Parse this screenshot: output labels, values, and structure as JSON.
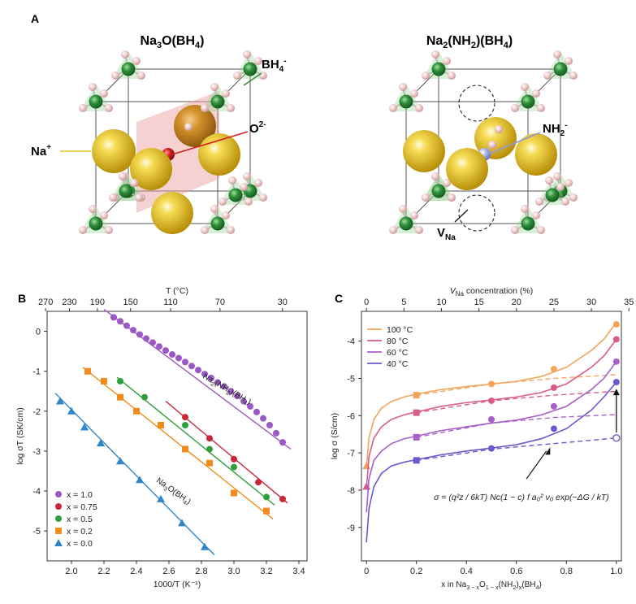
{
  "figure": {
    "panel_a": {
      "label": "A",
      "left_structure": {
        "title_parts": [
          "Na",
          "3",
          "O(BH",
          "4",
          ")"
        ],
        "callout_bh4": [
          "BH",
          "4",
          "-"
        ],
        "callout_na": [
          "Na",
          "+"
        ],
        "callout_o": [
          "O",
          "2-"
        ]
      },
      "right_structure": {
        "title_parts": [
          "Na",
          "2",
          "(NH",
          "2",
          ")(BH",
          "4",
          ")"
        ],
        "callout_nh2": [
          "NH",
          "2",
          "-"
        ],
        "callout_vna": [
          "V",
          "Na"
        ]
      },
      "colors": {
        "na": "#e9c21c",
        "boron": "#2f8f3a",
        "hydrogen": "#f1cccc",
        "oxygen": "#d61f1f",
        "nitrogen": "#9aa4e8",
        "oxide_plane": "#e89a9a"
      }
    },
    "panel_b": {
      "label": "B"
    },
    "panel_c": {
      "label": "C"
    }
  },
  "chart_data": [
    {
      "id": "B",
      "type": "scatter",
      "xlabel": "1000/T (K⁻¹)",
      "ylabel": "log σT (SK/cm)",
      "top_axis_label": "T (°C)",
      "xlim": [
        1.85,
        3.45
      ],
      "ylim": [
        -5.75,
        0.5
      ],
      "x_ticks": [
        2.0,
        2.2,
        2.4,
        2.6,
        2.8,
        3.0,
        3.2,
        3.4
      ],
      "x_tick_labels": [
        "2.0",
        "2.2",
        "2.4",
        "2.6",
        "2.8",
        "3.0",
        "3.2",
        "3.4"
      ],
      "y_ticks": [
        0,
        -1,
        -2,
        -3,
        -4,
        -5
      ],
      "y_tick_labels": [
        "0",
        "-1",
        "-2",
        "-3",
        "-4",
        "-5"
      ],
      "top_ticks_celsius": [
        270,
        230,
        190,
        150,
        110,
        70,
        30
      ],
      "top_tick_labels": [
        "270",
        "230",
        "190",
        "150",
        "110",
        "70",
        "30"
      ],
      "annotations": [
        {
          "parts": [
            "Na",
            "2",
            "(NH",
            "2",
            ")(BH",
            "4",
            ")"
          ],
          "x": 2.95,
          "y": -1.5,
          "angle": 30
        },
        {
          "parts": [
            "Na",
            "3",
            "O(BH",
            "4",
            ")"
          ],
          "x": 2.62,
          "y": -4.05,
          "angle": 35
        }
      ],
      "legend": {
        "placement": "bottom-left",
        "entries": [
          "x = 1.0",
          "x = 0.75",
          "x = 0.5",
          "x = 0.2",
          "x = 0.0"
        ]
      },
      "series": [
        {
          "name": "x = 1.0",
          "marker": "circle",
          "color": "#9b59c8",
          "x": [
            2.26,
            2.3,
            2.34,
            2.38,
            2.42,
            2.46,
            2.5,
            2.54,
            2.58,
            2.62,
            2.66,
            2.7,
            2.74,
            2.78,
            2.82,
            2.86,
            2.9,
            2.94,
            2.98,
            3.02,
            3.06,
            3.1,
            3.14,
            3.18,
            3.22,
            3.26,
            3.3
          ],
          "y": [
            0.35,
            0.25,
            0.14,
            0.03,
            -0.08,
            -0.18,
            -0.28,
            -0.38,
            -0.48,
            -0.58,
            -0.67,
            -0.77,
            -0.87,
            -0.97,
            -1.07,
            -1.17,
            -1.28,
            -1.38,
            -1.5,
            -1.62,
            -1.75,
            -1.88,
            -2.02,
            -2.18,
            -2.35,
            -2.55,
            -2.78
          ],
          "fit": [
            [
              2.2,
              0.55
            ],
            [
              3.35,
              -2.95
            ]
          ]
        },
        {
          "name": "x = 0.75",
          "marker": "circle",
          "color": "#c8273a",
          "x": [
            2.7,
            2.85,
            3.0,
            3.15,
            3.3
          ],
          "y": [
            -2.15,
            -2.68,
            -3.2,
            -3.78,
            -4.2
          ],
          "fit": [
            [
              2.58,
              -1.75
            ],
            [
              3.33,
              -4.3
            ]
          ]
        },
        {
          "name": "x = 0.5",
          "marker": "circle",
          "color": "#2e9e3e",
          "x": [
            2.3,
            2.45,
            2.7,
            2.85,
            3.0,
            3.2
          ],
          "y": [
            -1.25,
            -1.65,
            -2.35,
            -2.95,
            -3.4,
            -4.15
          ],
          "fit": [
            [
              2.28,
              -1.15
            ],
            [
              3.25,
              -4.35
            ]
          ]
        },
        {
          "name": "x = 0.2",
          "marker": "square",
          "color": "#f08c1e",
          "x": [
            2.1,
            2.2,
            2.3,
            2.4,
            2.55,
            2.7,
            2.85,
            3.0,
            3.2
          ],
          "y": [
            -1.0,
            -1.25,
            -1.65,
            -2.0,
            -2.35,
            -2.95,
            -3.3,
            -4.05,
            -4.5
          ],
          "fit": [
            [
              2.07,
              -0.9
            ],
            [
              3.24,
              -4.7
            ]
          ]
        },
        {
          "name": "x = 0.0",
          "marker": "triangle",
          "color": "#2f86c8",
          "x": [
            1.93,
            2.0,
            2.08,
            2.18,
            2.3,
            2.42,
            2.55,
            2.68,
            2.82
          ],
          "y": [
            -1.75,
            -2.0,
            -2.4,
            -2.8,
            -3.25,
            -3.72,
            -4.2,
            -4.8,
            -5.4
          ],
          "fit": [
            [
              1.9,
              -1.55
            ],
            [
              2.88,
              -5.6
            ]
          ]
        }
      ]
    },
    {
      "id": "C",
      "type": "line",
      "xlabel_parts": [
        "x in Na",
        "3 − x",
        "O",
        "1 − x",
        "(NH",
        "2",
        ")",
        "x",
        "(BH",
        "4",
        ")"
      ],
      "ylabel": "log σ (S/cm)",
      "top_axis_label_parts": [
        "V",
        "Na",
        " concentration (%)"
      ],
      "xlim": [
        -0.02,
        1.02
      ],
      "ylim": [
        -9.9,
        -3.2
      ],
      "x_ticks": [
        0,
        0.2,
        0.4,
        0.6,
        0.8,
        1.0
      ],
      "x_tick_labels": [
        "0",
        "0.2",
        "0.4",
        "0.6",
        "0.8",
        "1.0"
      ],
      "y_ticks": [
        -4,
        -5,
        -6,
        -7,
        -8,
        -9
      ],
      "y_tick_labels": [
        "-4",
        "-5",
        "-6",
        "-7",
        "-8",
        "-9"
      ],
      "top_ticks_percent": [
        0,
        5,
        10,
        15,
        20,
        25,
        30,
        35
      ],
      "top_tick_labels": [
        "0",
        "5",
        "10",
        "15",
        "20",
        "25",
        "30",
        "35"
      ],
      "legend": {
        "placement": "top-left",
        "entries": [
          "100 °C",
          "80 °C",
          "60 °C",
          "40 °C"
        ]
      },
      "formula": "σ = (q²z / 6kT) Nc(1 − c) f a₀² ν₀ exp(−ΔG / kT)",
      "series": [
        {
          "name": "100 °C",
          "color": "#f2a55a",
          "curve_x": [
            0.0,
            0.01,
            0.03,
            0.06,
            0.1,
            0.15,
            0.2,
            0.3,
            0.4,
            0.5,
            0.6,
            0.7,
            0.8,
            0.9,
            0.95,
            1.0
          ],
          "curve_y": [
            -7.4,
            -6.6,
            -6.1,
            -5.8,
            -5.62,
            -5.5,
            -5.42,
            -5.3,
            -5.22,
            -5.15,
            -5.08,
            -4.95,
            -4.7,
            -4.25,
            -3.95,
            -3.5
          ],
          "dashed_x": [
            0.2,
            0.5,
            0.75,
            1.0
          ],
          "dashed_y": [
            -5.45,
            -5.15,
            -5.0,
            -4.9
          ],
          "points_x": [
            0.0,
            0.2,
            0.5,
            0.75,
            1.0
          ],
          "points_y": [
            -7.35,
            -5.45,
            -5.15,
            -4.75,
            -3.55
          ],
          "markers": [
            "triangle",
            "square",
            "circle",
            "circle",
            "circle"
          ]
        },
        {
          "name": "80 °C",
          "color": "#d85b8a",
          "curve_x": [
            0.0,
            0.01,
            0.03,
            0.06,
            0.1,
            0.15,
            0.2,
            0.3,
            0.4,
            0.5,
            0.6,
            0.7,
            0.8,
            0.9,
            0.95,
            1.0
          ],
          "curve_y": [
            -7.95,
            -7.1,
            -6.6,
            -6.3,
            -6.1,
            -5.98,
            -5.9,
            -5.75,
            -5.65,
            -5.58,
            -5.5,
            -5.38,
            -5.15,
            -4.7,
            -4.4,
            -3.95
          ],
          "dashed_x": [
            0.2,
            0.5,
            0.75,
            1.0
          ],
          "dashed_y": [
            -5.92,
            -5.6,
            -5.45,
            -5.35
          ],
          "points_x": [
            0.0,
            0.2,
            0.5,
            0.75,
            1.0
          ],
          "points_y": [
            -7.9,
            -5.92,
            -5.6,
            -5.25,
            -3.95
          ],
          "markers": [
            "triangle",
            "square",
            "circle",
            "circle",
            "circle"
          ]
        },
        {
          "name": "60 °C",
          "color": "#a85fc8",
          "curve_x": [
            0.0,
            0.01,
            0.03,
            0.06,
            0.1,
            0.15,
            0.2,
            0.3,
            0.4,
            0.5,
            0.6,
            0.7,
            0.8,
            0.9,
            0.95,
            1.0
          ],
          "curve_y": [
            -8.6,
            -7.7,
            -7.2,
            -6.95,
            -6.75,
            -6.62,
            -6.55,
            -6.4,
            -6.3,
            -6.2,
            -6.12,
            -5.98,
            -5.75,
            -5.3,
            -5.0,
            -4.55
          ],
          "dashed_x": [
            0.2,
            0.5,
            0.75,
            1.0
          ],
          "dashed_y": [
            -6.58,
            -6.2,
            -6.05,
            -5.97
          ],
          "points_x": [
            0.2,
            0.5,
            0.75,
            1.0
          ],
          "points_y": [
            -6.58,
            -6.1,
            -5.75,
            -4.55
          ],
          "markers": [
            "square",
            "circle",
            "circle",
            "circle"
          ]
        },
        {
          "name": "40 °C",
          "color": "#6a5acd",
          "curve_x": [
            0.0,
            0.01,
            0.03,
            0.06,
            0.1,
            0.15,
            0.2,
            0.3,
            0.4,
            0.5,
            0.6,
            0.7,
            0.8,
            0.9,
            0.95,
            1.0
          ],
          "curve_y": [
            -9.4,
            -8.5,
            -7.9,
            -7.55,
            -7.35,
            -7.25,
            -7.18,
            -7.05,
            -6.95,
            -6.87,
            -6.78,
            -6.62,
            -6.35,
            -5.85,
            -5.5,
            -5.1
          ],
          "dashed_x": [
            0.2,
            0.5,
            0.75,
            1.0
          ],
          "dashed_y": [
            -7.2,
            -6.9,
            -6.75,
            -6.6
          ],
          "points_x": [
            0.2,
            0.5,
            0.75,
            1.0
          ],
          "points_y": [
            -7.2,
            -6.88,
            -6.35,
            -5.1
          ],
          "markers": [
            "square",
            "circle",
            "circle",
            "circle"
          ],
          "open_point": [
            1.0,
            -6.6
          ]
        }
      ]
    }
  ]
}
